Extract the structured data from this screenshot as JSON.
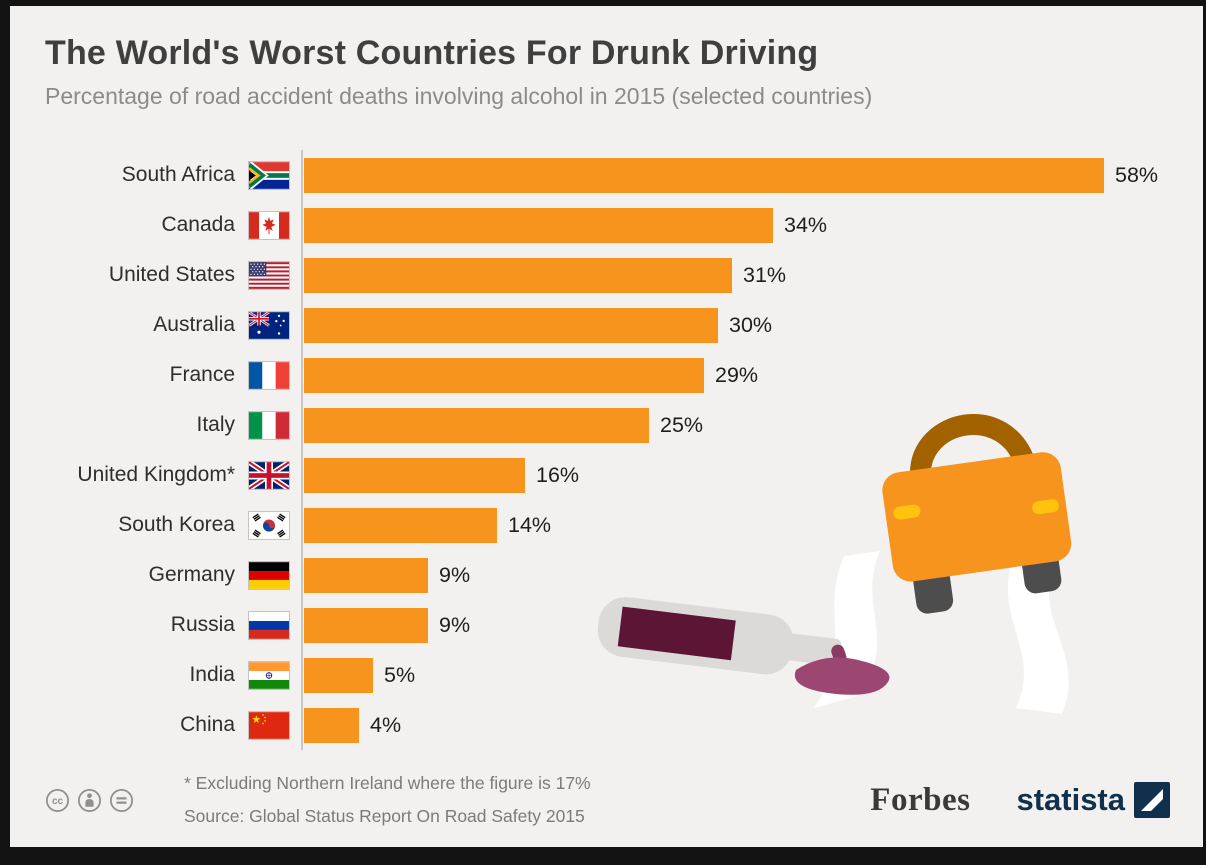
{
  "page": {
    "title": "The World's Worst Countries For Drunk Driving",
    "subtitle": "Percentage of road accident deaths involving alcohol in 2015 (selected countries)"
  },
  "chart_data": {
    "type": "bar",
    "orientation": "horizontal",
    "title": "The World's Worst Countries For Drunk Driving",
    "subtitle": "Percentage of road accident deaths involving alcohol in 2015 (selected countries)",
    "categories": [
      "South Africa",
      "Canada",
      "United States",
      "Australia",
      "France",
      "Italy",
      "United Kingdom*",
      "South Korea",
      "Germany",
      "Russia",
      "India",
      "China"
    ],
    "values": [
      58,
      34,
      31,
      30,
      29,
      25,
      16,
      14,
      9,
      9,
      5,
      4
    ],
    "value_suffix": "%",
    "flags": [
      "south-africa",
      "canada",
      "united-states",
      "australia",
      "france",
      "italy",
      "united-kingdom",
      "south-korea",
      "germany",
      "russia",
      "india",
      "china"
    ],
    "xlim": [
      0,
      60
    ],
    "bar_color": "#f7941e",
    "grid": false,
    "legend": false
  },
  "footer": {
    "footnote": "* Excluding Northern Ireland where the figure is 17%",
    "source": "Source: Global Status Report On Road Safety 2015",
    "brand_left": "Forbes",
    "brand_right": "statista",
    "license_icons": [
      "cc",
      "attribution",
      "no-derivatives"
    ]
  },
  "colors": {
    "bar": "#f7941e",
    "card_background": "#f2f1ef",
    "title": "#3f3f3f",
    "subtitle": "#8b8b8b",
    "car_body": "#f7941e",
    "car_roof": "#a36200",
    "headlight": "#ffc20e",
    "wine_dark": "#5c1535",
    "wine_spill": "#9c4672",
    "statista_navy": "#10304d"
  }
}
